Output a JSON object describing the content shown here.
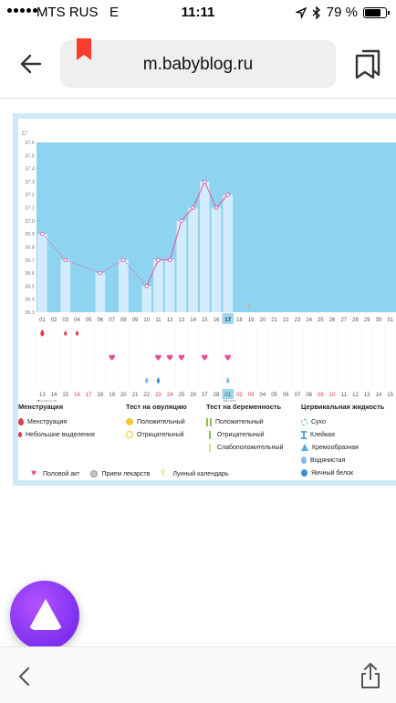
{
  "status_bar": {
    "carrier": "MTS RUS",
    "network": "E",
    "time": "11:11",
    "battery_percent": "79 %",
    "battery_level": 0.79
  },
  "browser": {
    "url": "m.babyblog.ru"
  },
  "chart_data": {
    "type": "line",
    "ylabel": "C°",
    "y_ticks": [
      "37.6",
      "37.5",
      "37.4",
      "37.3",
      "37.2",
      "37.1",
      "37.0",
      "36.9",
      "36.8",
      "36.7",
      "36.6",
      "36.5",
      "36.4",
      "36.3"
    ],
    "ylim": [
      36.3,
      37.6
    ],
    "cycle_days": [
      "01",
      "02",
      "03",
      "04",
      "05",
      "06",
      "07",
      "08",
      "09",
      "10",
      "11",
      "12",
      "13",
      "14",
      "15",
      "16",
      "17",
      "18",
      "19",
      "20",
      "21",
      "22",
      "23",
      "24",
      "25",
      "26",
      "27",
      "28",
      "29",
      "30",
      "31"
    ],
    "current_day": "17",
    "temperature": [
      36.9,
      null,
      36.7,
      null,
      null,
      36.6,
      null,
      36.7,
      null,
      36.5,
      36.7,
      36.7,
      37.0,
      37.1,
      37.3,
      37.1,
      37.2,
      null,
      null,
      null,
      null,
      null,
      null,
      null,
      null,
      null,
      null,
      null,
      null,
      null,
      null
    ],
    "calendar_dates": [
      "13",
      "14",
      "15",
      "16",
      "17",
      "18",
      "19",
      "20",
      "21",
      "22",
      "23",
      "24",
      "25",
      "26",
      "27",
      "28",
      "01",
      "02",
      "03",
      "04",
      "05",
      "06",
      "07",
      "08",
      "09",
      "10",
      "11",
      "12",
      "13",
      "14",
      "15"
    ],
    "weekend_date_indices": [
      3,
      4,
      10,
      11,
      17,
      18,
      24,
      25
    ],
    "month_start": "Февраль",
    "month_next": "Март",
    "month_next_index": 16,
    "menstruation_days": [
      0,
      2,
      3
    ],
    "menstruation_heavy_days": [
      0
    ],
    "intercourse_days": [
      6,
      10,
      11,
      12,
      14,
      16
    ],
    "cervical_fluid": [
      {
        "day": 9,
        "kind": "watery"
      },
      {
        "day": 10,
        "kind": "egg-white"
      },
      {
        "day": 16,
        "kind": "watery"
      }
    ],
    "moon_day": 18,
    "colors": {
      "luteal_bg": "#8ed3f0",
      "bar": "#d3ecfb",
      "line": "#e8559a",
      "moon": "#f0a02a"
    }
  },
  "legend": {
    "menstruation": {
      "title": "Менструация",
      "items": [
        "Менструация",
        "Небольшие выделения"
      ]
    },
    "ovulation_test": {
      "title": "Тест на овуляцию",
      "items": [
        "Положительный",
        "Отрицательный"
      ]
    },
    "pregnancy_test": {
      "title": "Тест на беременность",
      "items": [
        "Положительный",
        "Отрицательный",
        "Слабоположительный"
      ]
    },
    "cervical_fluid": {
      "title": "Цервикальная жидкость",
      "items": [
        "Сухо",
        "Клейкая",
        "Кремообразная",
        "Водянистая",
        "Яичный белок"
      ]
    },
    "extra": {
      "intercourse": "Половой акт",
      "medication": "Прием лекарств",
      "lunar": "Лунный календарь"
    }
  }
}
